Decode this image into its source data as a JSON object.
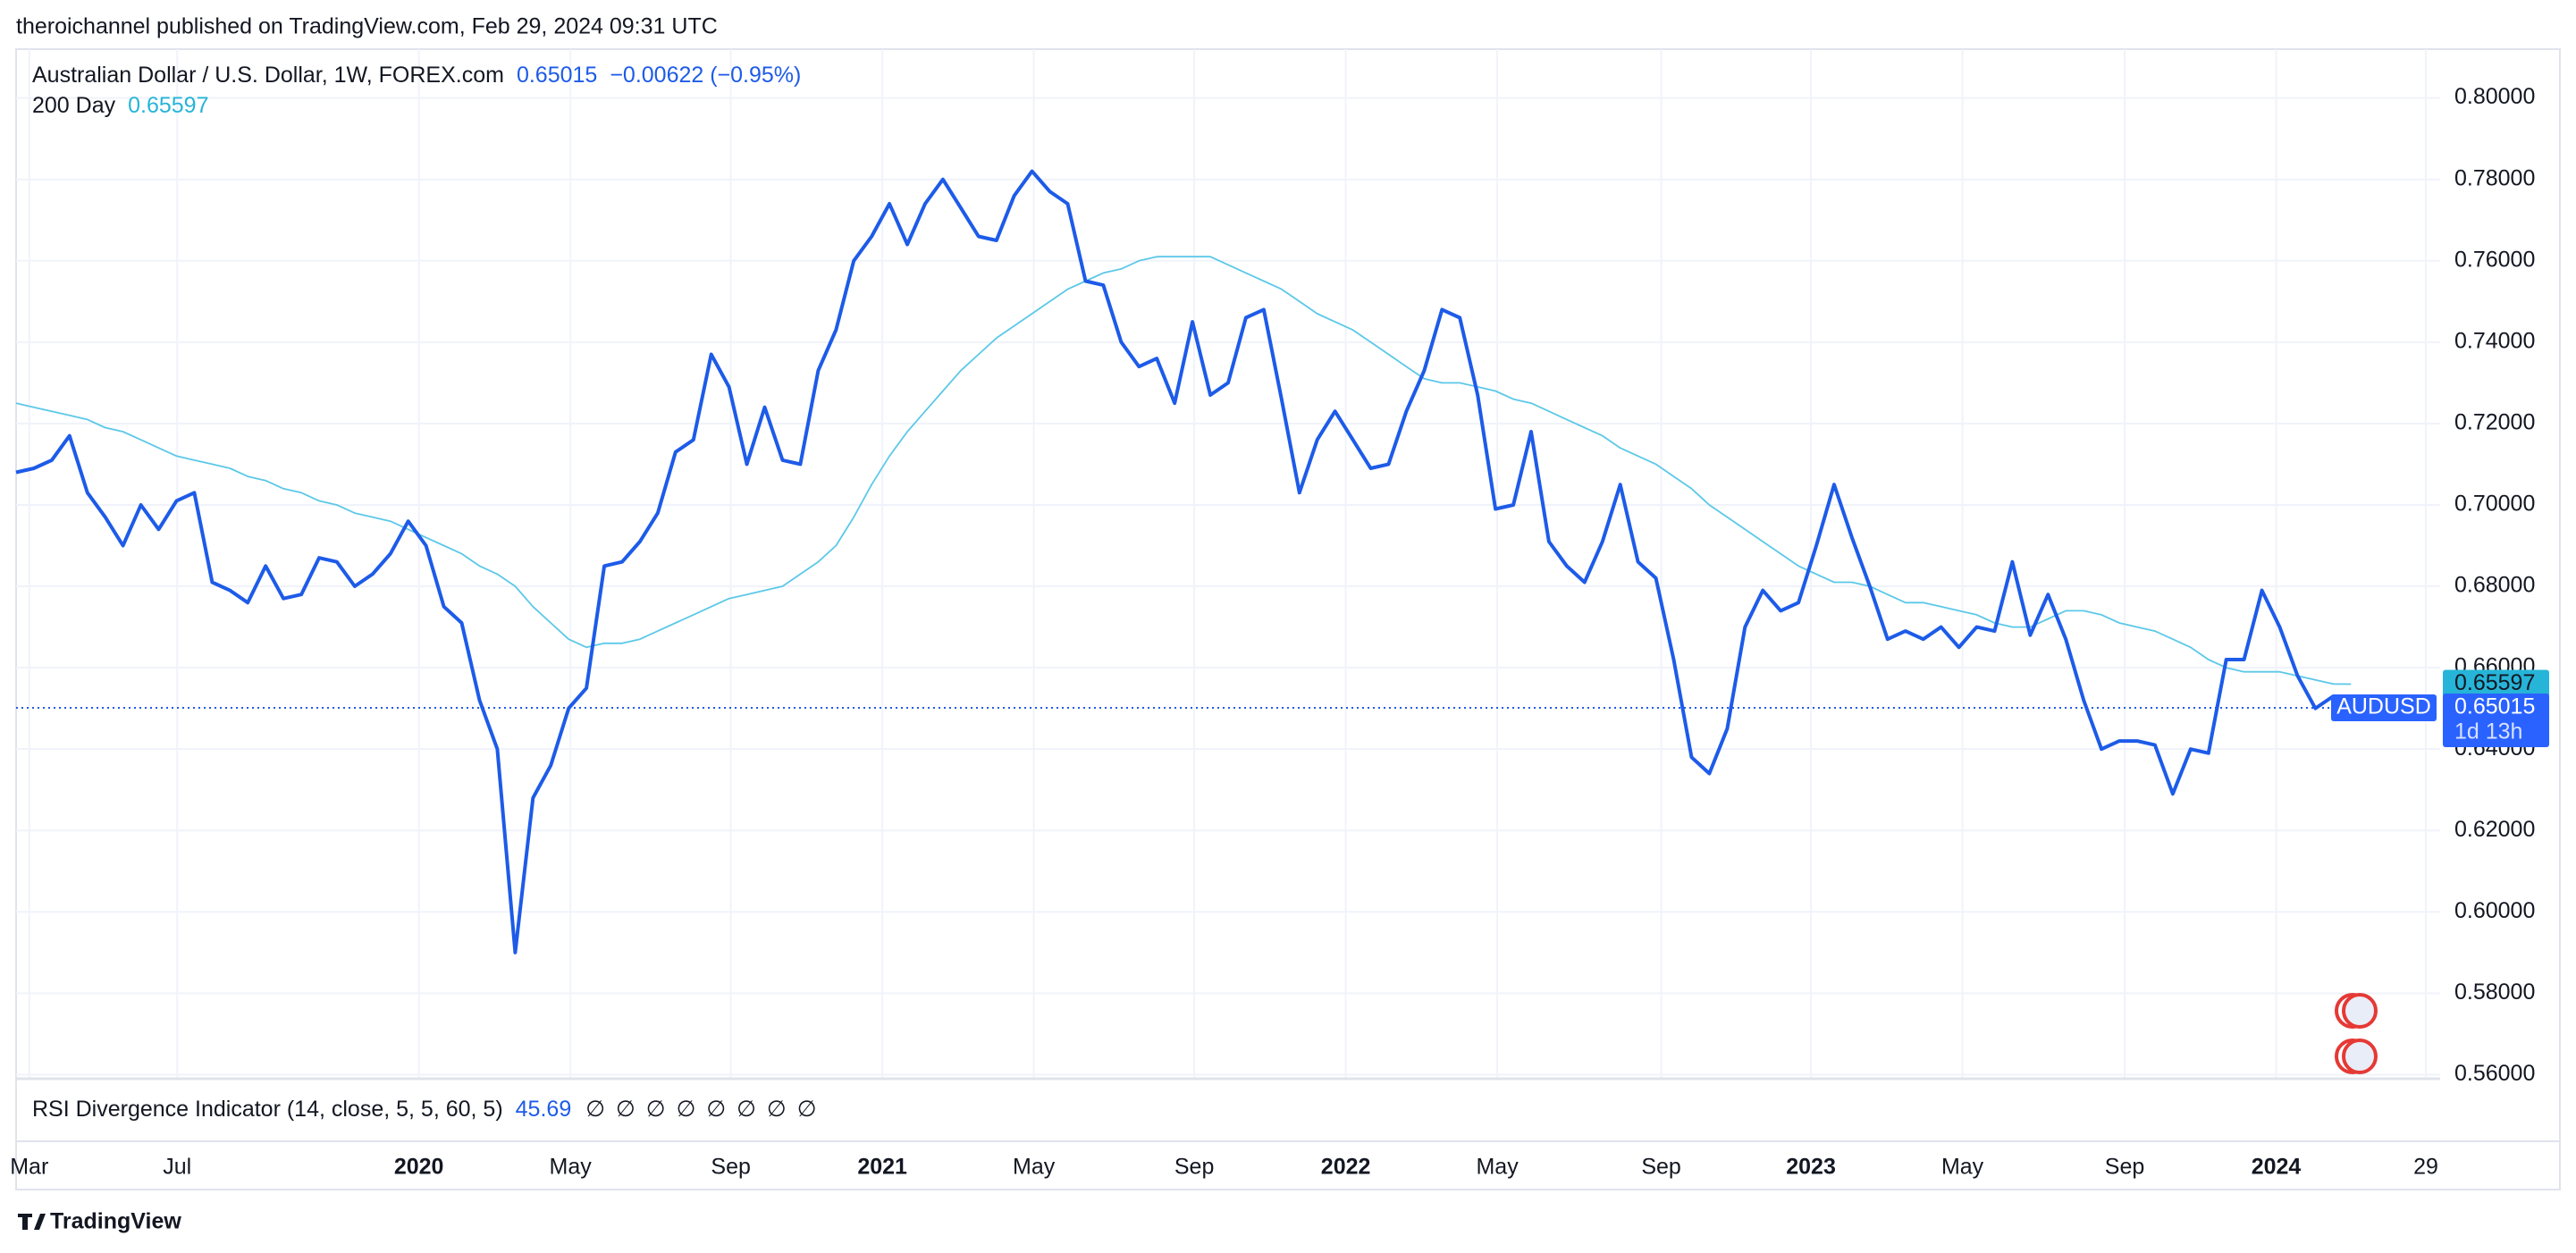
{
  "header": "theroichannel published on TradingView.com, Feb 29, 2024 09:31 UTC",
  "chart_data": {
    "type": "line",
    "symbol": "AUDUSD",
    "change_label": "−0.00622 (−0.95%)",
    "countdown": "1d 13h",
    "xlim": [
      0,
      136
    ],
    "xticks": [
      {
        "value": 0.74,
        "label": "Mar"
      },
      {
        "value": 9.04,
        "label": "Jul"
      },
      {
        "value": 22.6,
        "label": "2020"
      },
      {
        "value": 31.1,
        "label": "May"
      },
      {
        "value": 40.1,
        "label": "Sep"
      },
      {
        "value": 48.6,
        "label": "2021"
      },
      {
        "value": 57.1,
        "label": "May"
      },
      {
        "value": 66.1,
        "label": "Sep"
      },
      {
        "value": 74.6,
        "label": "2022"
      },
      {
        "value": 83.1,
        "label": "May"
      },
      {
        "value": 92.3,
        "label": "Sep"
      },
      {
        "value": 100.7,
        "label": "2023"
      },
      {
        "value": 109.2,
        "label": "May"
      },
      {
        "value": 118.3,
        "label": "Sep"
      },
      {
        "value": 126.8,
        "label": "2024"
      },
      {
        "value": 135.2,
        "label": "29"
      }
    ],
    "ylim": [
      0.559,
      0.812
    ],
    "yticks": [
      {
        "value": 0.56,
        "label": "0.56000"
      },
      {
        "value": 0.58,
        "label": "0.58000"
      },
      {
        "value": 0.6,
        "label": "0.60000"
      },
      {
        "value": 0.62,
        "label": "0.62000"
      },
      {
        "value": 0.64,
        "label": "0.64000"
      },
      {
        "value": 0.66,
        "label": "0.66000"
      },
      {
        "value": 0.68,
        "label": "0.68000"
      },
      {
        "value": 0.7,
        "label": "0.70000"
      },
      {
        "value": 0.72,
        "label": "0.72000"
      },
      {
        "value": 0.74,
        "label": "0.74000"
      },
      {
        "value": 0.76,
        "label": "0.76000"
      },
      {
        "value": 0.78,
        "label": "0.78000"
      },
      {
        "value": 0.8,
        "label": "0.80000"
      }
    ],
    "grid": true,
    "series": [
      {
        "name": "Australian Dollar / U.S. Dollar, 1W, FOREX.com",
        "color": "#1d5be8",
        "width": 4,
        "values": [
          0.708,
          0.709,
          0.711,
          0.717,
          0.703,
          0.697,
          0.69,
          0.7,
          0.694,
          0.701,
          0.703,
          0.681,
          0.679,
          0.676,
          0.685,
          0.677,
          0.678,
          0.687,
          0.686,
          0.68,
          0.683,
          0.688,
          0.696,
          0.69,
          0.675,
          0.671,
          0.652,
          0.64,
          0.59,
          0.628,
          0.636,
          0.65,
          0.655,
          0.685,
          0.686,
          0.691,
          0.698,
          0.713,
          0.716,
          0.737,
          0.729,
          0.71,
          0.724,
          0.711,
          0.71,
          0.733,
          0.743,
          0.76,
          0.766,
          0.774,
          0.764,
          0.774,
          0.78,
          0.773,
          0.766,
          0.765,
          0.776,
          0.782,
          0.777,
          0.774,
          0.755,
          0.754,
          0.74,
          0.734,
          0.736,
          0.725,
          0.745,
          0.727,
          0.73,
          0.746,
          0.748,
          0.726,
          0.703,
          0.716,
          0.723,
          0.716,
          0.709,
          0.71,
          0.723,
          0.733,
          0.748,
          0.746,
          0.727,
          0.699,
          0.7,
          0.718,
          0.691,
          0.685,
          0.681,
          0.691,
          0.705,
          0.686,
          0.682,
          0.662,
          0.638,
          0.634,
          0.645,
          0.67,
          0.679,
          0.674,
          0.676,
          0.69,
          0.705,
          0.692,
          0.68,
          0.667,
          0.669,
          0.667,
          0.67,
          0.665,
          0.67,
          0.669,
          0.686,
          0.668,
          0.678,
          0.667,
          0.652,
          0.64,
          0.642,
          0.642,
          0.641,
          0.629,
          0.64,
          0.639,
          0.662,
          0.662,
          0.679,
          0.67,
          0.658,
          0.65,
          0.653,
          0.65015
        ]
      },
      {
        "name": "200 Day",
        "color": "#5cc8e8",
        "width": 1.8,
        "values": [
          0.725,
          0.724,
          0.723,
          0.722,
          0.721,
          0.719,
          0.718,
          0.716,
          0.714,
          0.712,
          0.711,
          0.71,
          0.709,
          0.707,
          0.706,
          0.704,
          0.703,
          0.701,
          0.7,
          0.698,
          0.697,
          0.696,
          0.694,
          0.692,
          0.69,
          0.688,
          0.685,
          0.683,
          0.68,
          0.675,
          0.671,
          0.667,
          0.665,
          0.666,
          0.666,
          0.667,
          0.669,
          0.671,
          0.673,
          0.675,
          0.677,
          0.678,
          0.679,
          0.68,
          0.683,
          0.686,
          0.69,
          0.697,
          0.705,
          0.712,
          0.718,
          0.723,
          0.728,
          0.733,
          0.737,
          0.741,
          0.744,
          0.747,
          0.75,
          0.753,
          0.755,
          0.757,
          0.758,
          0.76,
          0.761,
          0.761,
          0.761,
          0.761,
          0.759,
          0.757,
          0.755,
          0.753,
          0.75,
          0.747,
          0.745,
          0.743,
          0.74,
          0.737,
          0.734,
          0.731,
          0.73,
          0.73,
          0.729,
          0.728,
          0.726,
          0.725,
          0.723,
          0.721,
          0.719,
          0.717,
          0.714,
          0.712,
          0.71,
          0.707,
          0.704,
          0.7,
          0.697,
          0.694,
          0.691,
          0.688,
          0.685,
          0.683,
          0.681,
          0.681,
          0.68,
          0.678,
          0.676,
          0.676,
          0.675,
          0.674,
          0.673,
          0.671,
          0.67,
          0.67,
          0.672,
          0.674,
          0.674,
          0.673,
          0.671,
          0.67,
          0.669,
          0.667,
          0.665,
          0.662,
          0.66,
          0.659,
          0.659,
          0.659,
          0.658,
          0.657,
          0.656,
          0.65597
        ]
      }
    ]
  },
  "indicator": {
    "label": "RSI Divergence Indicator (14, close, 5, 5, 60, 5)",
    "value": 45.69,
    "flags": [
      "∅",
      "∅",
      "∅",
      "∅",
      "∅",
      "∅",
      "∅",
      "∅"
    ]
  },
  "footer": "TradingView"
}
